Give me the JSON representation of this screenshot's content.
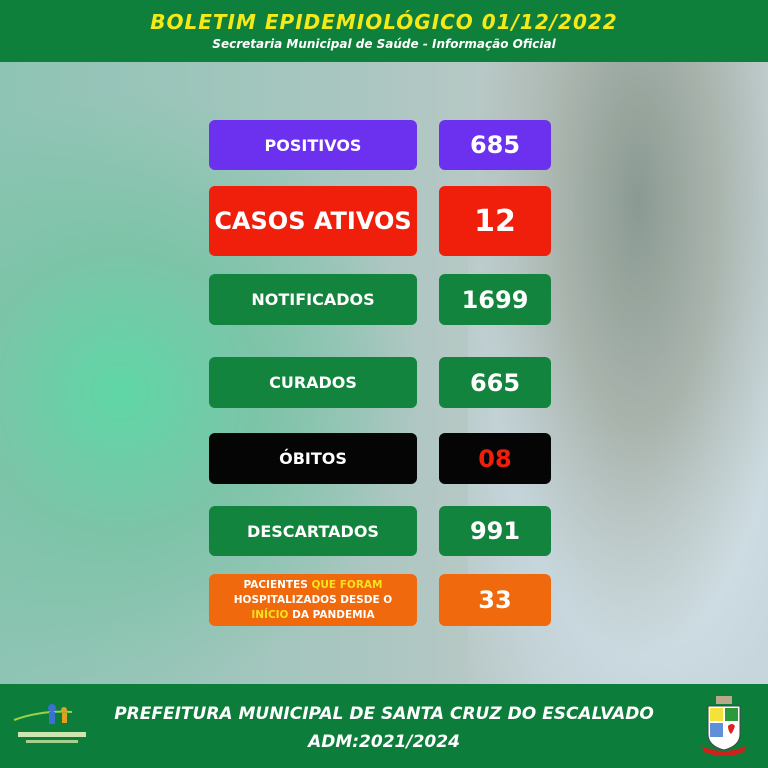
{
  "header": {
    "title": "BOLETIM  EPIDEMIOLÓGICO  01/12/2022",
    "subtitle": "Secretaria Municipal de Saúde - Informação Oficial"
  },
  "stats": [
    {
      "label": "POSITIVOS",
      "value": "685",
      "color": "#6b31ef"
    },
    {
      "label": "CASOS ATIVOS",
      "value": "12",
      "color": "#ef1f0c"
    },
    {
      "label": "NOTIFICADOS",
      "value": "1699",
      "color": "#12843d"
    },
    {
      "label": "CURADOS",
      "value": "665",
      "color": "#12843d"
    },
    {
      "label": "ÓBITOS",
      "value": "08",
      "color": "#050505",
      "value_text_color": "#ef1f0c"
    },
    {
      "label": "DESCARTADOS",
      "value": "991",
      "color": "#12843d"
    }
  ],
  "hospitalized": {
    "label_parts": [
      "PACIENTES ",
      "QUE FORAM",
      "HOSPITALIZADOS DESDE O",
      "INÍCIO",
      " DA PANDEMIA"
    ],
    "value": "33",
    "color": "#f0690c",
    "highlight_color": "#f7e31b"
  },
  "footer": {
    "line1": "PREFEITURA MUNICIPAL DE SANTA CRUZ DO ESCALVADO",
    "line2": "ADM:2021/2024",
    "logo_text": "SANTA CRUZ DO ESCALVADO"
  }
}
